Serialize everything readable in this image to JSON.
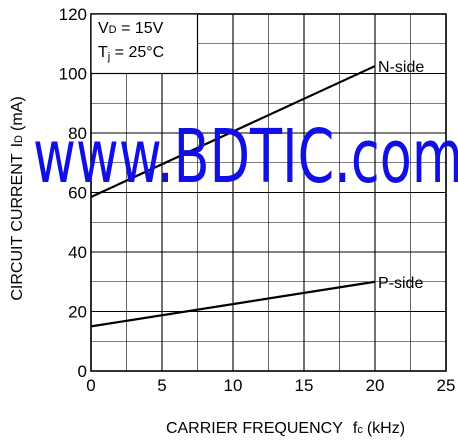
{
  "chart_data": {
    "type": "line",
    "xlabel": "CARRIER FREQUENCY",
    "xlabel_symbol": "f",
    "xlabel_symbol_sub": "c",
    "xlabel_unit": "(kHz)",
    "ylabel": "CIRCUIT CURRENT",
    "ylabel_symbol": "I",
    "ylabel_symbol_sub": "D",
    "ylabel_unit": "(mA)",
    "xlim": [
      0,
      25
    ],
    "ylim": [
      0,
      120
    ],
    "x_ticks": [
      "0",
      "5",
      "10",
      "15",
      "20",
      "25"
    ],
    "y_ticks": [
      "0",
      "20",
      "40",
      "60",
      "80",
      "100",
      "120"
    ],
    "grid": true,
    "conditions": [
      {
        "main": "V",
        "sub": "D",
        "rest": " = 15V"
      },
      {
        "main": "T",
        "sub": "j",
        "rest": " = 25°C"
      }
    ],
    "series": [
      {
        "name": "N-side",
        "x": [
          0,
          20
        ],
        "y": [
          58.5,
          102.5
        ]
      },
      {
        "name": "P-side",
        "x": [
          0,
          20
        ],
        "y": [
          15,
          30
        ]
      }
    ],
    "watermark": "www.BDTIC.com",
    "colors": {
      "line": "#000000",
      "grid": "#000000",
      "watermark": "#1010e6"
    }
  }
}
